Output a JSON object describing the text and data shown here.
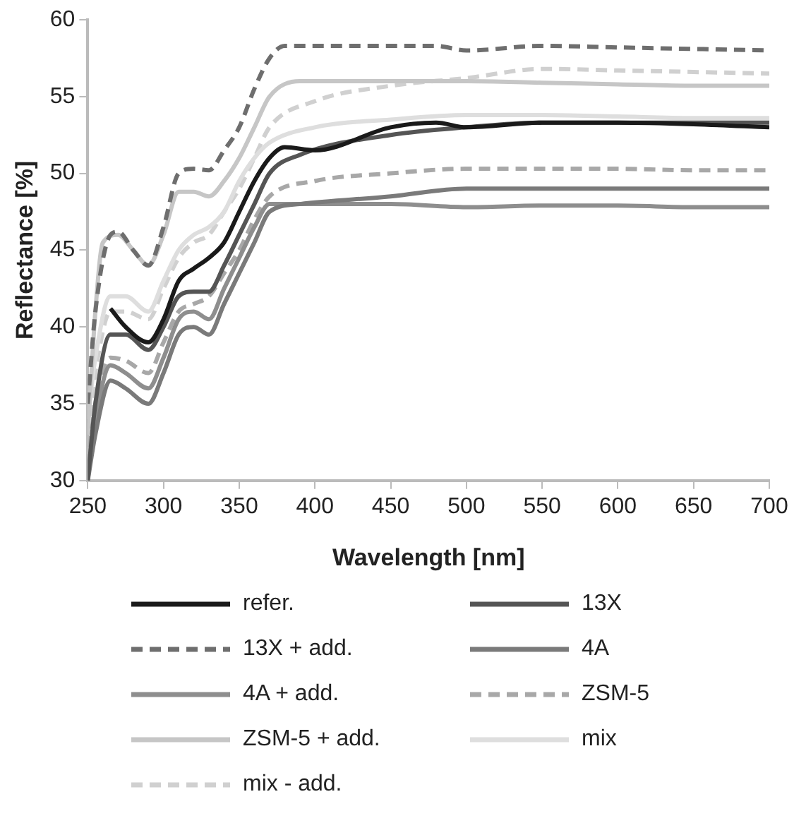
{
  "chart_data": {
    "type": "line",
    "xlabel": "Wavelength [nm]",
    "ylabel": "Reflectance [%]",
    "xlim": [
      250,
      700
    ],
    "xticks": [
      250,
      300,
      350,
      400,
      450,
      500,
      550,
      600,
      650,
      700
    ],
    "ylim": [
      30,
      60
    ],
    "yticks": [
      30,
      35,
      40,
      45,
      50,
      55,
      60
    ],
    "grid": false,
    "legend": "bottom",
    "marker": "none",
    "series": [
      {
        "name": "refer.",
        "color": "#1a1a1a",
        "line_style": "solid",
        "x": [
          265,
          275,
          290,
          300,
          310,
          320,
          330,
          340,
          350,
          360,
          370,
          380,
          400,
          450,
          480,
          500,
          550,
          600,
          650,
          700
        ],
        "values": [
          41.2,
          40,
          39,
          40.5,
          43,
          43.8,
          44.5,
          45.5,
          47.5,
          49.5,
          51,
          51.7,
          51.5,
          53,
          53.3,
          53,
          53.3,
          53.3,
          53.2,
          53
        ]
      },
      {
        "name": "13X",
        "color": "#555555",
        "line_style": "solid",
        "x": [
          250,
          255,
          265,
          275,
          290,
          300,
          310,
          320,
          330,
          340,
          350,
          360,
          370,
          390,
          450,
          500,
          550,
          600,
          650,
          700
        ],
        "values": [
          30,
          35,
          39.5,
          39.5,
          38.5,
          40,
          42,
          42.3,
          42.3,
          44,
          46,
          48,
          50,
          51.2,
          52.5,
          53,
          53.3,
          53.3,
          53.3,
          53.3
        ]
      },
      {
        "name": "13X + add.",
        "color": "#6e6e6e",
        "line_style": "dashed",
        "x": [
          250,
          255,
          265,
          270,
          280,
          290,
          300,
          310,
          320,
          330,
          340,
          350,
          360,
          370,
          380,
          400,
          450,
          480,
          500,
          550,
          600,
          650,
          700
        ],
        "values": [
          35,
          41,
          46,
          46.2,
          45,
          44,
          46.5,
          50,
          50.3,
          50.2,
          51.5,
          53,
          55.5,
          57.5,
          58.3,
          58.3,
          58.3,
          58.3,
          58,
          58.3,
          58.2,
          58.1,
          58
        ]
      },
      {
        "name": "4A",
        "color": "#7a7a7a",
        "line_style": "solid",
        "x": [
          250,
          255,
          265,
          275,
          290,
          300,
          310,
          320,
          330,
          340,
          350,
          360,
          370,
          390,
          450,
          500,
          550,
          600,
          650,
          700
        ],
        "values": [
          30,
          33,
          36.5,
          36,
          35,
          37,
          39.5,
          40,
          39.5,
          41.5,
          43.5,
          45.5,
          47.5,
          48,
          48.5,
          49,
          49,
          49,
          49,
          49
        ]
      },
      {
        "name": "4A + add.",
        "color": "#8e8e8e",
        "line_style": "solid",
        "x": [
          250,
          255,
          265,
          275,
          290,
          300,
          310,
          320,
          330,
          340,
          350,
          360,
          370,
          390,
          450,
          500,
          550,
          600,
          650,
          700
        ],
        "values": [
          30.5,
          34,
          37.5,
          37,
          36,
          38,
          40.5,
          41,
          40.5,
          42.5,
          44.5,
          46.5,
          48,
          48,
          48,
          47.8,
          47.9,
          47.9,
          47.8,
          47.8
        ]
      },
      {
        "name": "ZSM-5",
        "color": "#a8a8a8",
        "line_style": "dashed",
        "x": [
          250,
          255,
          265,
          275,
          290,
          300,
          310,
          320,
          330,
          340,
          350,
          360,
          370,
          400,
          450,
          500,
          550,
          600,
          650,
          700
        ],
        "values": [
          31,
          35,
          38,
          37.8,
          37,
          39,
          41,
          41.5,
          42,
          43.5,
          45,
          47,
          48.5,
          49.5,
          50,
          50.3,
          50.3,
          50.3,
          50.2,
          50.2
        ]
      },
      {
        "name": "ZSM-5 + add.",
        "color": "#c6c6c6",
        "line_style": "solid",
        "x": [
          250,
          255,
          260,
          270,
          280,
          290,
          300,
          310,
          320,
          330,
          340,
          350,
          360,
          370,
          390,
          450,
          500,
          550,
          600,
          650,
          700
        ],
        "values": [
          33,
          41,
          45.5,
          46,
          45,
          44,
          46,
          48.8,
          48.8,
          48.5,
          49.5,
          51,
          53,
          55,
          56,
          56,
          56,
          55.9,
          55.8,
          55.7,
          55.7
        ]
      },
      {
        "name": "mix",
        "color": "#dedede",
        "line_style": "solid",
        "x": [
          250,
          255,
          265,
          275,
          290,
          300,
          310,
          320,
          330,
          340,
          350,
          360,
          370,
          400,
          450,
          500,
          550,
          600,
          650,
          700
        ],
        "values": [
          34,
          38,
          42,
          42,
          41,
          43,
          45,
          46,
          46.5,
          47.5,
          49.5,
          51,
          52,
          53,
          53.5,
          53.8,
          53.8,
          53.7,
          53.6,
          53.6
        ]
      },
      {
        "name": "mix - add.",
        "color": "#d0d0d0",
        "line_style": "dashed",
        "x": [
          250,
          255,
          265,
          275,
          290,
          300,
          310,
          320,
          330,
          340,
          350,
          360,
          370,
          400,
          450,
          500,
          550,
          600,
          650,
          700
        ],
        "values": [
          33,
          37,
          41,
          41,
          40.5,
          42.5,
          44.5,
          45.5,
          46,
          47.5,
          49,
          51,
          53,
          54.7,
          55.7,
          56.2,
          56.8,
          56.7,
          56.6,
          56.5
        ]
      }
    ]
  }
}
